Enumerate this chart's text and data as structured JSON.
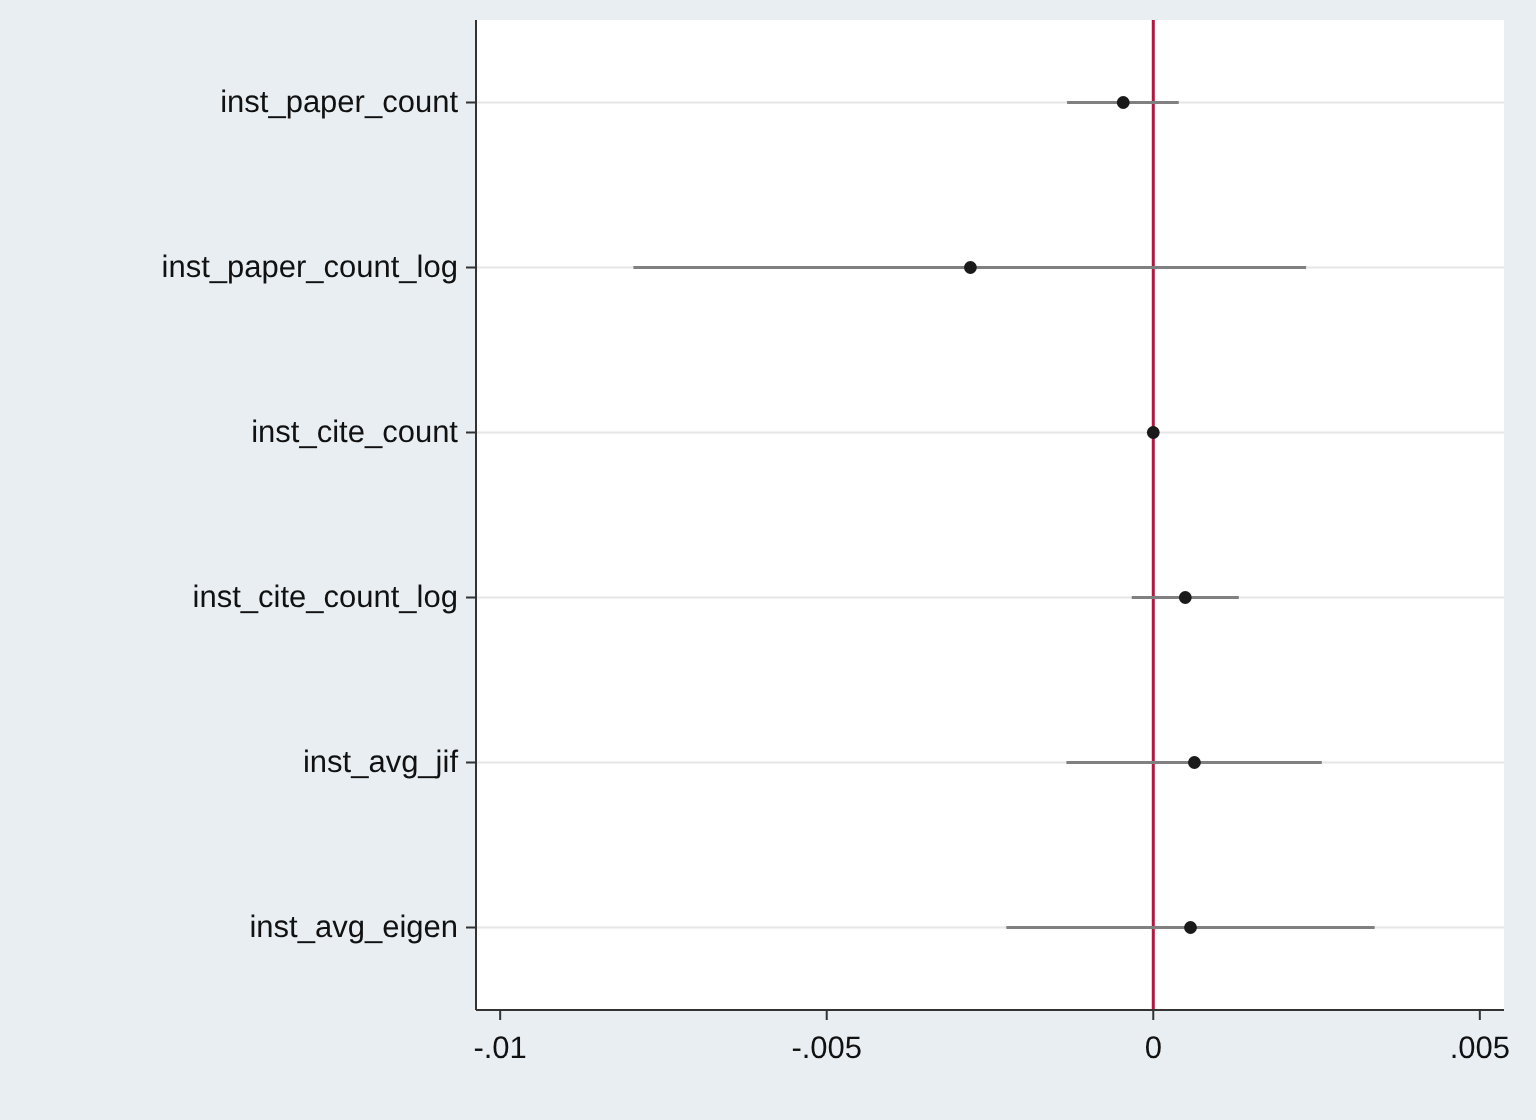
{
  "chart_data": {
    "type": "scatter",
    "orientation": "horizontal",
    "categories": [
      "inst_paper_count",
      "inst_paper_count_log",
      "inst_cite_count",
      "inst_cite_count_log",
      "inst_avg_jif",
      "inst_avg_eigen"
    ],
    "color": "#1a1a1a",
    "values": [
      -0.00046,
      -0.0028,
      0.0,
      0.00049,
      0.00063,
      0.00057
    ],
    "errors": [
      [
        -0.00132,
        0.00039
      ],
      [
        -0.00796,
        0.00234
      ],
      null,
      [
        -0.00033,
        0.00131
      ],
      [
        -0.00133,
        0.00258
      ],
      [
        -0.00225,
        0.00339
      ]
    ],
    "xlim": [
      -0.01037,
      0.00537
    ],
    "xticks": [
      {
        "value": -0.01,
        "label": "-.01"
      },
      {
        "value": -0.005,
        "label": "-.005"
      },
      0,
      {
        "value": 0.005,
        "label": ".005"
      }
    ],
    "grid": "y",
    "marker": "circle",
    "ref_lines": [
      {
        "axis": "x",
        "value": 0,
        "color": "#b2173f"
      }
    ]
  }
}
